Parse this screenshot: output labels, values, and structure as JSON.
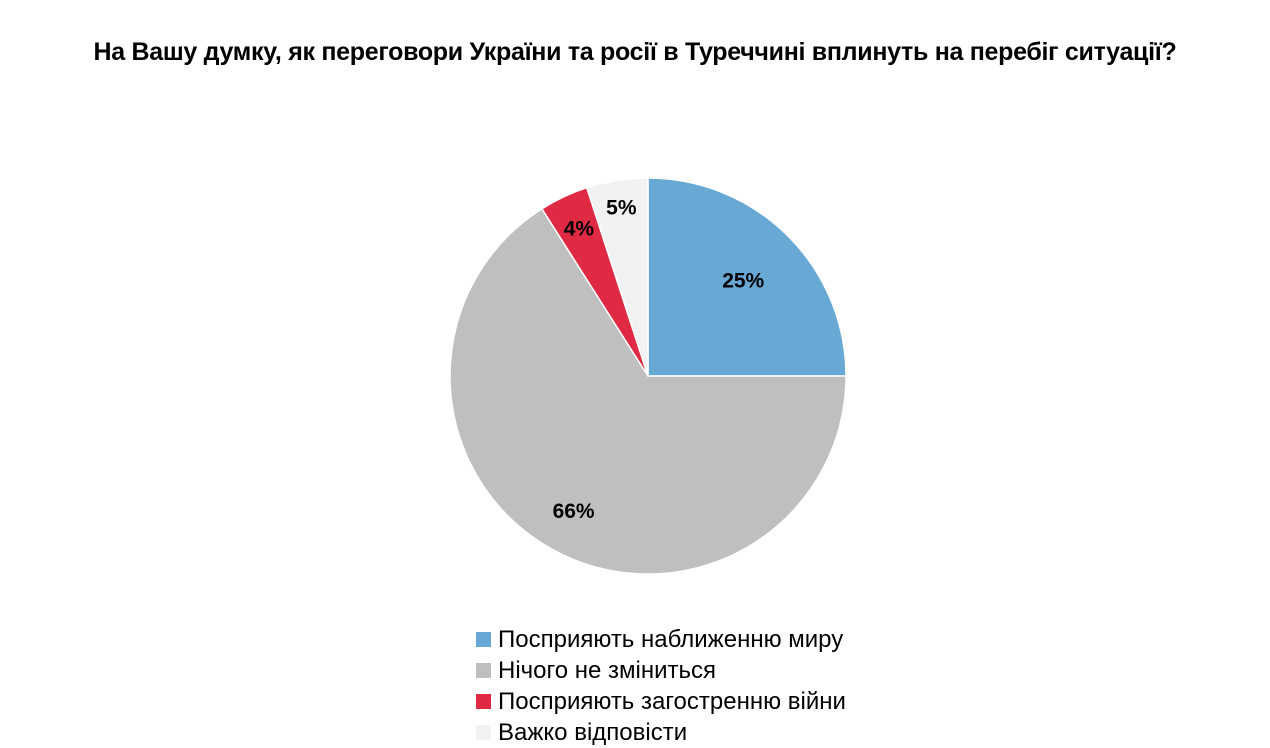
{
  "chart_data": {
    "type": "pie",
    "title": "На Вашу думку, як переговори України та росії в Туреччині вплинуть на перебіг ситуації?",
    "slices": [
      {
        "name": "Посприяють наближенню миру",
        "value": 25,
        "label": "25%",
        "color": "#67a8d4"
      },
      {
        "name": "Нічого не зміниться",
        "value": 66,
        "label": "66%",
        "color": "#bfbfbf"
      },
      {
        "name": "Посприяють загостренню війни",
        "value": 4,
        "label": "4%",
        "color": "#e02a44"
      },
      {
        "name": "Важко відповісти",
        "value": 5,
        "label": "5%",
        "color": "#f2f2f2"
      }
    ],
    "start_angle_deg": 0,
    "direction": "clockwise",
    "legend_position": "bottom"
  }
}
